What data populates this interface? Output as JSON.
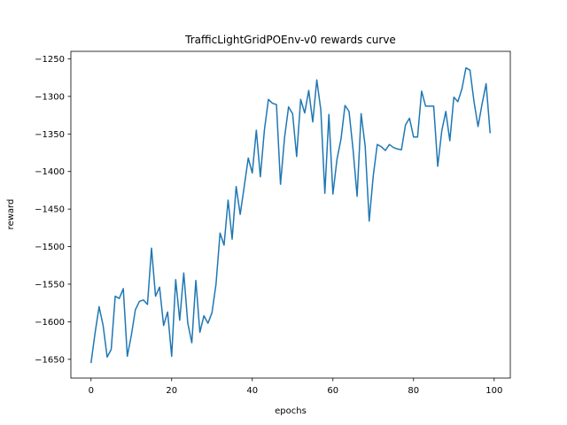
{
  "chart_data": {
    "type": "line",
    "title": "TrafficLightGridPOEnv-v0 rewards curve",
    "xlabel": "epochs",
    "ylabel": "reward",
    "xlim": [
      -5,
      104
    ],
    "ylim": [
      -1675,
      -1240
    ],
    "xticks": [
      0,
      20,
      40,
      60,
      80,
      100
    ],
    "yticks": [
      -1650,
      -1600,
      -1550,
      -1500,
      -1450,
      -1400,
      -1350,
      -1300,
      -1250
    ],
    "grid": false,
    "line_color": "#1f77b4",
    "series": [
      {
        "x": [
          0,
          1,
          2,
          3,
          4,
          5,
          6,
          7,
          8,
          9,
          10,
          11,
          12,
          13,
          14,
          15,
          16,
          17,
          18,
          19,
          20,
          21,
          22,
          23,
          24,
          25,
          26,
          27,
          28,
          29,
          30,
          31,
          32,
          33,
          34,
          35,
          36,
          37,
          38,
          39,
          40,
          41,
          42,
          43,
          44,
          45,
          46,
          47,
          48,
          49,
          50,
          51,
          52,
          53,
          54,
          55,
          56,
          57,
          58,
          59,
          60,
          61,
          62,
          63,
          64,
          65,
          66,
          67,
          68,
          69,
          70,
          71,
          72,
          73,
          74,
          75,
          76,
          77,
          78,
          79,
          80,
          81,
          82,
          83,
          84,
          85,
          86,
          87,
          88,
          89,
          90,
          91,
          92,
          93,
          94,
          95,
          96,
          97,
          98,
          99
        ],
        "values": [
          -1655,
          -1615,
          -1580,
          -1605,
          -1647,
          -1637,
          -1566,
          -1569,
          -1556,
          -1646,
          -1618,
          -1584,
          -1573,
          -1571,
          -1577,
          -1502,
          -1566,
          -1554,
          -1605,
          -1587,
          -1646,
          -1544,
          -1598,
          -1535,
          -1602,
          -1628,
          -1545,
          -1614,
          -1592,
          -1602,
          -1588,
          -1550,
          -1482,
          -1498,
          -1438,
          -1490,
          -1420,
          -1457,
          -1420,
          -1382,
          -1402,
          -1345,
          -1407,
          -1345,
          -1304,
          -1309,
          -1311,
          -1417,
          -1355,
          -1314,
          -1323,
          -1380,
          -1304,
          -1322,
          -1292,
          -1334,
          -1278,
          -1318,
          -1429,
          -1324,
          -1430,
          -1384,
          -1357,
          -1312,
          -1320,
          -1371,
          -1433,
          -1323,
          -1366,
          -1466,
          -1406,
          -1364,
          -1367,
          -1372,
          -1364,
          -1368,
          -1370,
          -1371,
          -1338,
          -1329,
          -1354,
          -1354,
          -1293,
          -1313,
          -1313,
          -1313,
          -1393,
          -1346,
          -1320,
          -1359,
          -1301,
          -1307,
          -1290,
          -1262,
          -1265,
          -1307,
          -1340,
          -1310,
          -1283,
          -1349
        ]
      }
    ]
  }
}
